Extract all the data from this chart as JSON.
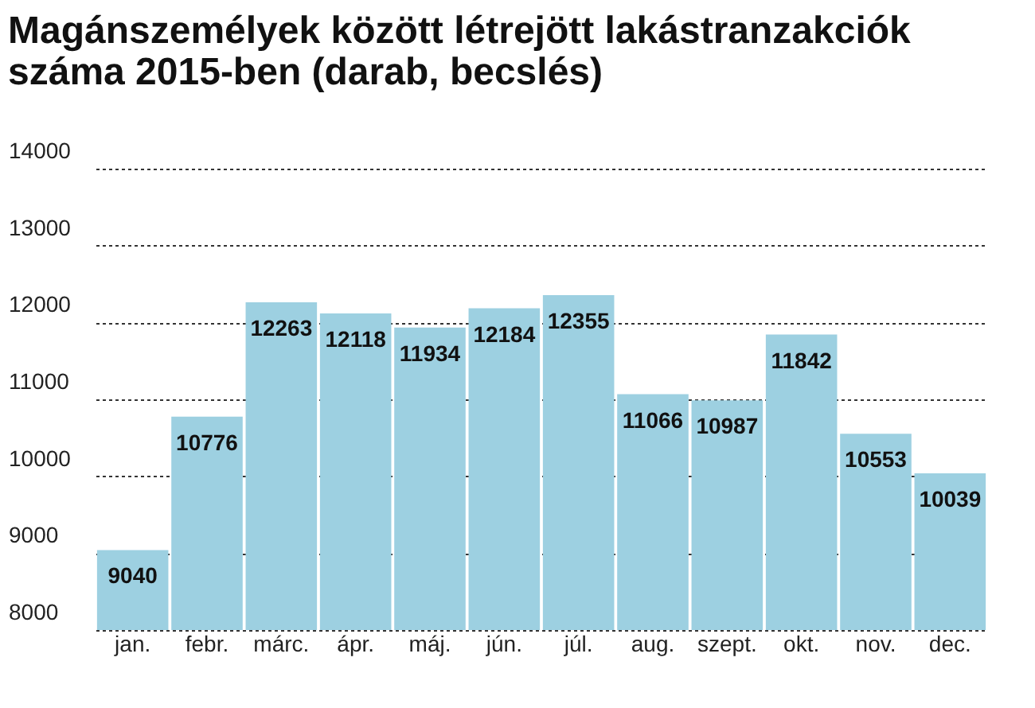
{
  "chart_data": {
    "type": "bar",
    "title": [
      "Magánszemélyek között létrejött lakástranzakciók",
      "száma 2015-ben (darab, becslés)"
    ],
    "categories": [
      "jan.",
      "febr.",
      "márc.",
      "ápr.",
      "máj.",
      "jún.",
      "júl.",
      "aug.",
      "szept.",
      "okt.",
      "nov.",
      "dec."
    ],
    "values": [
      9040,
      10776,
      12263,
      12118,
      11934,
      12184,
      12355,
      11066,
      10987,
      11842,
      10553,
      10039
    ],
    "color": "#9dd0e1",
    "ylim": [
      8000,
      14000
    ],
    "yticks": [
      8000,
      9000,
      10000,
      11000,
      12000,
      13000,
      14000
    ],
    "grid": "y",
    "data_labels": true
  }
}
